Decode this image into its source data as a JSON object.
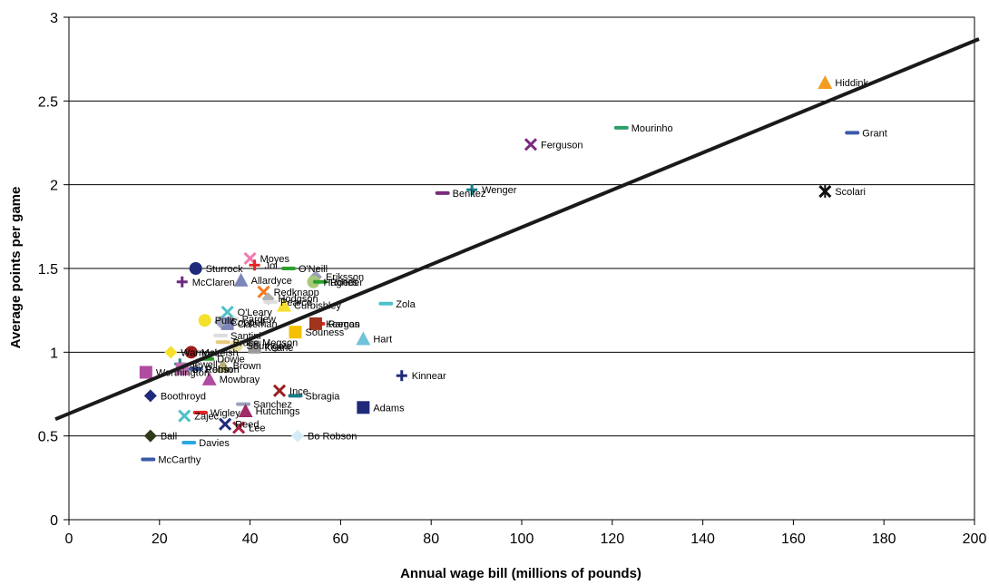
{
  "chart_data": {
    "type": "scatter",
    "xlabel": "Annual wage bill (millions of pounds)",
    "ylabel": "Average points per game",
    "xlim": [
      0,
      200
    ],
    "ylim": [
      0,
      3
    ],
    "xticks": [
      "0",
      "20",
      "40",
      "60",
      "80",
      "100",
      "120",
      "140",
      "160",
      "180",
      "200"
    ],
    "yticks": [
      "0",
      "0.5",
      "1",
      "1.5",
      "2",
      "2.5",
      "3"
    ],
    "grid": "horizontal",
    "trendline": {
      "x": [
        -3,
        201
      ],
      "y": [
        0.6,
        2.87
      ]
    },
    "points": [
      {
        "label": "Hiddink",
        "x": 167,
        "y": 2.61,
        "marker": "triangle",
        "color": "#f39c1f"
      },
      {
        "label": "Mourinho",
        "x": 122,
        "y": 2.34,
        "marker": "dash",
        "color": "#2e9e6b"
      },
      {
        "label": "Grant",
        "x": 173,
        "y": 2.31,
        "marker": "dash",
        "color": "#3a5aa8"
      },
      {
        "label": "Ferguson",
        "x": 102,
        "y": 2.24,
        "marker": "x",
        "color": "#7b2a7e"
      },
      {
        "label": "Wenger",
        "x": 89,
        "y": 1.97,
        "marker": "plus",
        "color": "#1a7f8a"
      },
      {
        "label": "Benitez",
        "x": 82.5,
        "y": 1.95,
        "marker": "dash",
        "color": "#7b2a7e"
      },
      {
        "label": "Scolari",
        "x": 167,
        "y": 1.96,
        "marker": "star",
        "color": "#111111"
      },
      {
        "label": "Moyes",
        "x": 40,
        "y": 1.56,
        "marker": "x",
        "color": "#f47ab0"
      },
      {
        "label": "Jol",
        "x": 41,
        "y": 1.52,
        "marker": "plus",
        "color": "#e32626"
      },
      {
        "label": "O'Neill",
        "x": 48.5,
        "y": 1.5,
        "marker": "dash",
        "color": "#2ca02c"
      },
      {
        "label": "Sturrock",
        "x": 28,
        "y": 1.5,
        "marker": "circle",
        "color": "#1f2a7a"
      },
      {
        "label": "Eriksson",
        "x": 54.5,
        "y": 1.45,
        "marker": "diamond",
        "color": "#9aa0b8"
      },
      {
        "label": "Allardyce",
        "x": 38,
        "y": 1.43,
        "marker": "triangle",
        "color": "#7d86b8"
      },
      {
        "label": "McClaren",
        "x": 25,
        "y": 1.42,
        "marker": "plus",
        "color": "#6a2a7e"
      },
      {
        "label": "Hughes",
        "x": 54,
        "y": 1.42,
        "marker": "circle",
        "color": "#a9c97a"
      },
      {
        "label": "Roeder",
        "x": 55.5,
        "y": 1.42,
        "marker": "dash",
        "color": "#2ca02c"
      },
      {
        "label": "Redknapp",
        "x": 43,
        "y": 1.36,
        "marker": "x",
        "color": "#f47a20"
      },
      {
        "label": "Hodgson",
        "x": 44,
        "y": 1.32,
        "marker": "diamond",
        "color": "#b0b0b0"
      },
      {
        "label": "Pearce",
        "x": 44.5,
        "y": 1.3,
        "marker": "dash",
        "color": "#dddddd"
      },
      {
        "label": "Curbishley",
        "x": 47.5,
        "y": 1.28,
        "marker": "triangle",
        "color": "#f5e02a"
      },
      {
        "label": "Zola",
        "x": 70,
        "y": 1.29,
        "marker": "dash",
        "color": "#4fc0c8"
      },
      {
        "label": "O'Leary",
        "x": 35,
        "y": 1.24,
        "marker": "x",
        "color": "#4fc0c8"
      },
      {
        "label": "Pardew",
        "x": 36,
        "y": 1.2,
        "marker": "dash",
        "color": "#dddddd"
      },
      {
        "label": "Pulis",
        "x": 30,
        "y": 1.19,
        "marker": "circle",
        "color": "#f5e02a"
      },
      {
        "label": "Coleman",
        "x": 35,
        "y": 1.17,
        "marker": "square",
        "color": "#7d86b8"
      },
      {
        "label": "Ramos",
        "x": 55,
        "y": 1.17,
        "marker": "dash",
        "color": "#e32626"
      },
      {
        "label": "Keegan",
        "x": 54.5,
        "y": 1.17,
        "marker": "square",
        "color": "#a0341c"
      },
      {
        "label": "Coppell",
        "x": 33.5,
        "y": 1.18,
        "marker": "diamond",
        "color": "#9aa0b8"
      },
      {
        "label": "Souness",
        "x": 50,
        "y": 1.12,
        "marker": "square",
        "color": "#f5c000"
      },
      {
        "label": "Hart",
        "x": 65,
        "y": 1.08,
        "marker": "triangle",
        "color": "#6fc2d8"
      },
      {
        "label": "Santini",
        "x": 33.5,
        "y": 1.1,
        "marker": "dash",
        "color": "#dddddd"
      },
      {
        "label": "Bruce",
        "x": 34,
        "y": 1.06,
        "marker": "dash",
        "color": "#e6c97a"
      },
      {
        "label": "Megson",
        "x": 40.5,
        "y": 1.06,
        "marker": "dash",
        "color": "#cccccc"
      },
      {
        "label": "Southgate",
        "x": 37,
        "y": 1.04,
        "marker": "circle",
        "color": "#e8e0a0"
      },
      {
        "label": "Keane",
        "x": 41,
        "y": 1.03,
        "marker": "square",
        "color": "#9a9a9a"
      },
      {
        "label": "McLeish",
        "x": 27,
        "y": 1.0,
        "marker": "circle",
        "color": "#9a1f1f"
      },
      {
        "label": "Warnock",
        "x": 22.5,
        "y": 1.0,
        "marker": "diamond",
        "color": "#f5e02a"
      },
      {
        "label": "Dowie",
        "x": 30.5,
        "y": 0.96,
        "marker": "dash",
        "color": "#2ca02c"
      },
      {
        "label": "Jewell",
        "x": 24.5,
        "y": 0.93,
        "marker": "plus",
        "color": "#1a7f8a"
      },
      {
        "label": "Brown",
        "x": 34,
        "y": 0.92,
        "marker": "triangle",
        "color": "#b5b07a"
      },
      {
        "label": "Perrin",
        "x": 28,
        "y": 0.9,
        "marker": "dash",
        "color": "#3a5aa8"
      },
      {
        "label": "Worthington",
        "x": 17,
        "y": 0.88,
        "marker": "square",
        "color": "#b04ca0"
      },
      {
        "label": "Br Robson",
        "x": 25,
        "y": 0.9,
        "marker": "square",
        "color": "#c070b0"
      },
      {
        "label": "Mowbray",
        "x": 31,
        "y": 0.84,
        "marker": "triangle",
        "color": "#b04ca0"
      },
      {
        "label": "Kinnear",
        "x": 73.5,
        "y": 0.86,
        "marker": "plus",
        "color": "#1f2a7a"
      },
      {
        "label": "Ince",
        "x": 46.5,
        "y": 0.77,
        "marker": "x",
        "color": "#9a1f1f"
      },
      {
        "label": "Sbragia",
        "x": 50,
        "y": 0.74,
        "marker": "dash",
        "color": "#1a7f8a"
      },
      {
        "label": "Boothroyd",
        "x": 18,
        "y": 0.74,
        "marker": "diamond",
        "color": "#1f2a7a"
      },
      {
        "label": "Sanchez",
        "x": 38.5,
        "y": 0.69,
        "marker": "dash",
        "color": "#9aa0b8"
      },
      {
        "label": "Adams",
        "x": 65,
        "y": 0.67,
        "marker": "square",
        "color": "#1f2a7a"
      },
      {
        "label": "Wigley",
        "x": 29,
        "y": 0.64,
        "marker": "dash",
        "color": "#e32626"
      },
      {
        "label": "Hutchings",
        "x": 39,
        "y": 0.65,
        "marker": "triangle",
        "color": "#a02a6a"
      },
      {
        "label": "Zajec",
        "x": 25.5,
        "y": 0.62,
        "marker": "x",
        "color": "#4fc0c8"
      },
      {
        "label": "Reed",
        "x": 34.5,
        "y": 0.57,
        "marker": "x",
        "color": "#1f2a7a"
      },
      {
        "label": "Lee",
        "x": 37.5,
        "y": 0.55,
        "marker": "x",
        "color": "#b02040"
      },
      {
        "label": "Ball",
        "x": 18,
        "y": 0.5,
        "marker": "diamond",
        "color": "#2f3a1a"
      },
      {
        "label": "Bo Robson",
        "x": 50.5,
        "y": 0.5,
        "marker": "diamond",
        "color": "#d4ecf8"
      },
      {
        "label": "Davies",
        "x": 26.5,
        "y": 0.46,
        "marker": "dash",
        "color": "#2aa8e0"
      },
      {
        "label": "McCarthy",
        "x": 17.5,
        "y": 0.36,
        "marker": "dash",
        "color": "#3a5aa8"
      }
    ]
  }
}
